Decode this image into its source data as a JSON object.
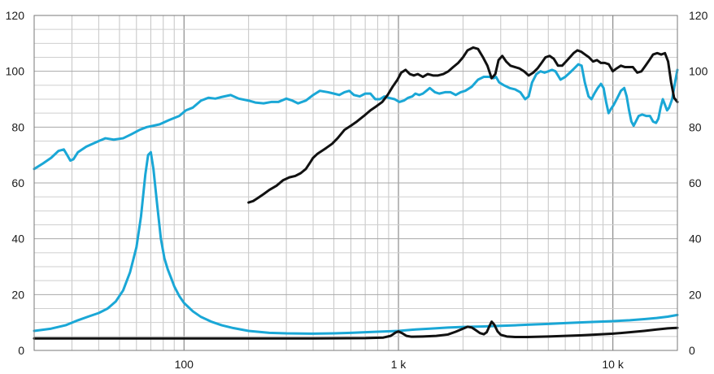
{
  "chart_data": {
    "type": "line",
    "x_scale": "log",
    "xlim": [
      20,
      20000
    ],
    "ylim": [
      0,
      120
    ],
    "grid": true,
    "y_ticks": [
      0,
      20,
      40,
      60,
      80,
      100,
      120
    ],
    "y_tick_labels": [
      "0",
      "20",
      "40",
      "60",
      "80",
      "100",
      "120"
    ],
    "x_ticks": [
      100,
      1000,
      10000
    ],
    "x_tick_labels": [
      "100",
      "1 k",
      "10 k"
    ],
    "colors": {
      "blue": "#1aa7d6",
      "black": "#111111"
    },
    "series": [
      {
        "color": "#1aa7d6",
        "points": [
          [
            20,
            65
          ],
          [
            22,
            67
          ],
          [
            24,
            69
          ],
          [
            26,
            71.5
          ],
          [
            27.5,
            72
          ],
          [
            28.5,
            70
          ],
          [
            29.5,
            68
          ],
          [
            30.5,
            68.5
          ],
          [
            32,
            71
          ],
          [
            35,
            73
          ],
          [
            40,
            75
          ],
          [
            43,
            76
          ],
          [
            47,
            75.5
          ],
          [
            52,
            76
          ],
          [
            57,
            77.5
          ],
          [
            62,
            79
          ],
          [
            67,
            80
          ],
          [
            72,
            80.5
          ],
          [
            77,
            81
          ],
          [
            85,
            82.5
          ],
          [
            95,
            84
          ],
          [
            102,
            86
          ],
          [
            110,
            87
          ],
          [
            120,
            89.5
          ],
          [
            130,
            90.5
          ],
          [
            140,
            90.2
          ],
          [
            150,
            90.8
          ],
          [
            165,
            91.5
          ],
          [
            180,
            90.2
          ],
          [
            200,
            89.5
          ],
          [
            215,
            88.8
          ],
          [
            235,
            88.5
          ],
          [
            255,
            89
          ],
          [
            275,
            89
          ],
          [
            300,
            90.2
          ],
          [
            320,
            89.5
          ],
          [
            340,
            88.5
          ],
          [
            370,
            89.5
          ],
          [
            400,
            91.5
          ],
          [
            430,
            93
          ],
          [
            470,
            92.5
          ],
          [
            500,
            92
          ],
          [
            530,
            91.5
          ],
          [
            560,
            92.5
          ],
          [
            590,
            93
          ],
          [
            620,
            91.5
          ],
          [
            660,
            91
          ],
          [
            700,
            92
          ],
          [
            740,
            92
          ],
          [
            780,
            90
          ],
          [
            820,
            90
          ],
          [
            860,
            91
          ],
          [
            900,
            90.5
          ],
          [
            960,
            90
          ],
          [
            1010,
            89
          ],
          [
            1060,
            89.5
          ],
          [
            1110,
            90.5
          ],
          [
            1160,
            91
          ],
          [
            1200,
            92
          ],
          [
            1250,
            91.5
          ],
          [
            1300,
            92
          ],
          [
            1350,
            93
          ],
          [
            1400,
            94
          ],
          [
            1480,
            92.5
          ],
          [
            1550,
            92
          ],
          [
            1650,
            92.5
          ],
          [
            1750,
            92.5
          ],
          [
            1850,
            91.5
          ],
          [
            1950,
            92.5
          ],
          [
            2050,
            93
          ],
          [
            2200,
            94.5
          ],
          [
            2350,
            97
          ],
          [
            2500,
            98
          ],
          [
            2650,
            98
          ],
          [
            2780,
            97.5
          ],
          [
            2850,
            98
          ],
          [
            2950,
            96
          ],
          [
            3100,
            95
          ],
          [
            3300,
            94
          ],
          [
            3500,
            93.5
          ],
          [
            3700,
            92.5
          ],
          [
            3900,
            90
          ],
          [
            4050,
            91
          ],
          [
            4200,
            96
          ],
          [
            4400,
            99
          ],
          [
            4600,
            100
          ],
          [
            4800,
            99.5
          ],
          [
            5000,
            100
          ],
          [
            5200,
            100.5
          ],
          [
            5400,
            100
          ],
          [
            5700,
            97
          ],
          [
            6000,
            98
          ],
          [
            6300,
            99.5
          ],
          [
            6600,
            101
          ],
          [
            6900,
            102.5
          ],
          [
            7150,
            102
          ],
          [
            7400,
            96
          ],
          [
            7700,
            91
          ],
          [
            7950,
            90
          ],
          [
            8200,
            92
          ],
          [
            8500,
            94
          ],
          [
            8800,
            95.5
          ],
          [
            9050,
            94
          ],
          [
            9300,
            89
          ],
          [
            9550,
            85
          ],
          [
            9800,
            86.5
          ],
          [
            10100,
            88
          ],
          [
            10500,
            90.5
          ],
          [
            10900,
            93
          ],
          [
            11300,
            94
          ],
          [
            11600,
            91
          ],
          [
            11900,
            86
          ],
          [
            12200,
            82
          ],
          [
            12500,
            80.5
          ],
          [
            12800,
            82
          ],
          [
            13200,
            84
          ],
          [
            13700,
            84.5
          ],
          [
            14300,
            84
          ],
          [
            14900,
            84
          ],
          [
            15400,
            82
          ],
          [
            15900,
            81.5
          ],
          [
            16300,
            83
          ],
          [
            16700,
            87
          ],
          [
            17100,
            90
          ],
          [
            17500,
            88
          ],
          [
            17900,
            86
          ],
          [
            18300,
            87
          ],
          [
            18900,
            90
          ],
          [
            19500,
            96
          ],
          [
            20000,
            100.5
          ]
        ]
      },
      {
        "color": "#111111",
        "points": [
          [
            200,
            53
          ],
          [
            210,
            53.5
          ],
          [
            220,
            54.5
          ],
          [
            235,
            56
          ],
          [
            250,
            57.5
          ],
          [
            270,
            59
          ],
          [
            290,
            61
          ],
          [
            310,
            62
          ],
          [
            330,
            62.5
          ],
          [
            350,
            63.5
          ],
          [
            370,
            65
          ],
          [
            385,
            67
          ],
          [
            400,
            69
          ],
          [
            420,
            70.5
          ],
          [
            440,
            71.5
          ],
          [
            460,
            72.5
          ],
          [
            490,
            74
          ],
          [
            520,
            76
          ],
          [
            560,
            79
          ],
          [
            600,
            80.5
          ],
          [
            640,
            82
          ],
          [
            690,
            84
          ],
          [
            740,
            86
          ],
          [
            790,
            87.5
          ],
          [
            840,
            89
          ],
          [
            890,
            91.5
          ],
          [
            940,
            94.5
          ],
          [
            990,
            97
          ],
          [
            1030,
            99.5
          ],
          [
            1080,
            100.5
          ],
          [
            1130,
            99
          ],
          [
            1180,
            98.5
          ],
          [
            1230,
            99
          ],
          [
            1300,
            98
          ],
          [
            1370,
            99
          ],
          [
            1450,
            98.5
          ],
          [
            1530,
            98.5
          ],
          [
            1620,
            99
          ],
          [
            1710,
            100
          ],
          [
            1800,
            101.5
          ],
          [
            1900,
            103
          ],
          [
            2000,
            105
          ],
          [
            2100,
            107.5
          ],
          [
            2230,
            108.5
          ],
          [
            2350,
            108
          ],
          [
            2480,
            105
          ],
          [
            2600,
            102
          ],
          [
            2720,
            97.5
          ],
          [
            2830,
            99
          ],
          [
            2930,
            104
          ],
          [
            3050,
            105.5
          ],
          [
            3180,
            103.5
          ],
          [
            3330,
            102
          ],
          [
            3500,
            101.5
          ],
          [
            3670,
            101
          ],
          [
            3850,
            100
          ],
          [
            4050,
            98.5
          ],
          [
            4250,
            99.5
          ],
          [
            4450,
            101
          ],
          [
            4650,
            103
          ],
          [
            4850,
            105
          ],
          [
            5070,
            105.5
          ],
          [
            5300,
            104.5
          ],
          [
            5550,
            102
          ],
          [
            5800,
            102
          ],
          [
            6050,
            103.5
          ],
          [
            6300,
            105
          ],
          [
            6560,
            106.5
          ],
          [
            6830,
            107.5
          ],
          [
            7120,
            107
          ],
          [
            7420,
            106
          ],
          [
            7740,
            105
          ],
          [
            8080,
            103.5
          ],
          [
            8430,
            104
          ],
          [
            8790,
            103
          ],
          [
            9170,
            103
          ],
          [
            9570,
            102.5
          ],
          [
            9990,
            100
          ],
          [
            10400,
            101
          ],
          [
            10900,
            102
          ],
          [
            11400,
            101.5
          ],
          [
            11900,
            101.5
          ],
          [
            12400,
            101.5
          ],
          [
            13000,
            99.5
          ],
          [
            13600,
            100
          ],
          [
            14200,
            102
          ],
          [
            14800,
            104
          ],
          [
            15400,
            106
          ],
          [
            16100,
            106.5
          ],
          [
            16800,
            106
          ],
          [
            17500,
            106.5
          ],
          [
            18100,
            103.5
          ],
          [
            18700,
            96
          ],
          [
            19300,
            90.5
          ],
          [
            20000,
            89
          ]
        ]
      },
      {
        "color": "#1aa7d6",
        "points": [
          [
            20,
            7
          ],
          [
            24,
            7.8
          ],
          [
            28,
            9
          ],
          [
            32,
            10.8
          ],
          [
            36,
            12.2
          ],
          [
            40,
            13.4
          ],
          [
            44,
            15
          ],
          [
            48,
            17.5
          ],
          [
            52,
            21.5
          ],
          [
            56,
            28
          ],
          [
            60,
            37
          ],
          [
            63,
            48
          ],
          [
            66,
            63
          ],
          [
            68,
            70
          ],
          [
            70,
            71
          ],
          [
            72,
            65
          ],
          [
            75,
            52
          ],
          [
            78,
            40
          ],
          [
            81,
            33
          ],
          [
            84,
            29
          ],
          [
            87,
            26
          ],
          [
            90,
            23
          ],
          [
            95,
            19.5
          ],
          [
            100,
            17
          ],
          [
            110,
            14
          ],
          [
            120,
            12
          ],
          [
            135,
            10.2
          ],
          [
            150,
            9
          ],
          [
            170,
            8
          ],
          [
            200,
            7
          ],
          [
            250,
            6.3
          ],
          [
            300,
            6.1
          ],
          [
            400,
            6
          ],
          [
            500,
            6.1
          ],
          [
            600,
            6.3
          ],
          [
            700,
            6.5
          ],
          [
            800,
            6.7
          ],
          [
            1000,
            7
          ],
          [
            1200,
            7.5
          ],
          [
            1400,
            7.8
          ],
          [
            1700,
            8.2
          ],
          [
            2000,
            8.4
          ],
          [
            2500,
            8.6
          ],
          [
            3000,
            8.8
          ],
          [
            3500,
            9
          ],
          [
            4000,
            9.2
          ],
          [
            5000,
            9.5
          ],
          [
            6000,
            9.8
          ],
          [
            7000,
            10
          ],
          [
            8000,
            10.2
          ],
          [
            10000,
            10.5
          ],
          [
            12000,
            10.8
          ],
          [
            14000,
            11.2
          ],
          [
            16000,
            11.6
          ],
          [
            18000,
            12.1
          ],
          [
            20000,
            12.7
          ]
        ]
      },
      {
        "color": "#111111",
        "points": [
          [
            20,
            4.3
          ],
          [
            50,
            4.3
          ],
          [
            100,
            4.3
          ],
          [
            200,
            4.3
          ],
          [
            400,
            4.3
          ],
          [
            700,
            4.4
          ],
          [
            850,
            4.6
          ],
          [
            920,
            5.2
          ],
          [
            970,
            6.4
          ],
          [
            1000,
            6.8
          ],
          [
            1040,
            6.2
          ],
          [
            1090,
            5.2
          ],
          [
            1150,
            4.9
          ],
          [
            1300,
            5
          ],
          [
            1500,
            5.2
          ],
          [
            1700,
            5.7
          ],
          [
            1850,
            6.7
          ],
          [
            2000,
            7.8
          ],
          [
            2100,
            8.5
          ],
          [
            2200,
            8.2
          ],
          [
            2300,
            7.2
          ],
          [
            2400,
            6.2
          ],
          [
            2500,
            5.8
          ],
          [
            2580,
            6.5
          ],
          [
            2650,
            8.5
          ],
          [
            2720,
            10.3
          ],
          [
            2800,
            9.2
          ],
          [
            2900,
            6.8
          ],
          [
            3000,
            5.6
          ],
          [
            3200,
            5
          ],
          [
            3500,
            4.8
          ],
          [
            4000,
            4.8
          ],
          [
            5000,
            5
          ],
          [
            6000,
            5.2
          ],
          [
            7000,
            5.4
          ],
          [
            8000,
            5.6
          ],
          [
            10000,
            6
          ],
          [
            12000,
            6.5
          ],
          [
            14000,
            7
          ],
          [
            16000,
            7.5
          ],
          [
            18000,
            7.9
          ],
          [
            19000,
            8
          ],
          [
            20000,
            8.1
          ]
        ]
      }
    ]
  }
}
